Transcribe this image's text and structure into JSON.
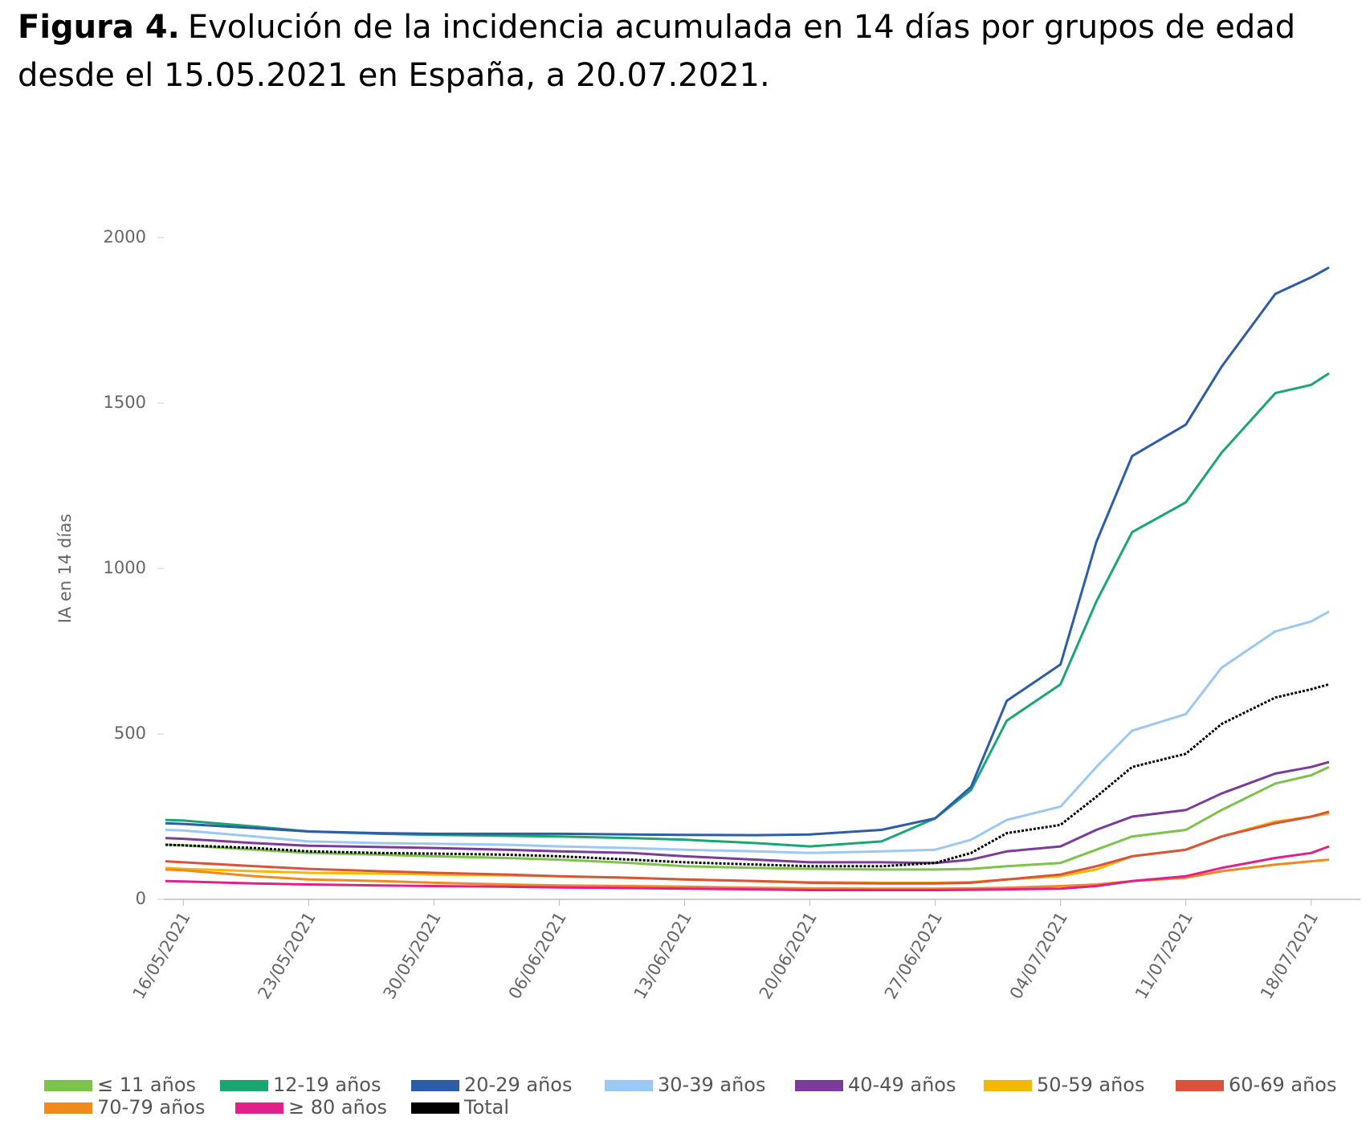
{
  "chart_data": {
    "type": "line",
    "title_label": "Figura 4.",
    "title": "Evolución de la incidencia acumulada en 14 días por grupos de edad",
    "subtitle": "desde el 15.05.2021 en España, a 20.07.2021.",
    "y_label": "IA en 14 días",
    "x": [
      "15/05/2021",
      "16/05/2021",
      "20/05/2021",
      "23/05/2021",
      "27/05/2021",
      "30/05/2021",
      "03/06/2021",
      "06/06/2021",
      "10/06/2021",
      "13/06/2021",
      "17/06/2021",
      "20/06/2021",
      "24/06/2021",
      "27/06/2021",
      "29/06/2021",
      "01/07/2021",
      "04/07/2021",
      "06/07/2021",
      "08/07/2021",
      "11/07/2021",
      "13/07/2021",
      "16/07/2021",
      "18/07/2021",
      "19/07/2021"
    ],
    "xlim": [
      "15/05/2021",
      "19/07/2021"
    ],
    "xticks": [
      "16/05/2021",
      "23/05/2021",
      "30/05/2021",
      "06/06/2021",
      "13/06/2021",
      "20/06/2021",
      "27/06/2021",
      "04/07/2021",
      "11/07/2021",
      "18/07/2021"
    ],
    "ylim": [
      0,
      2000
    ],
    "yticks": [
      0,
      500,
      1000,
      1500,
      2000
    ],
    "series": [
      {
        "name": "≤ 11 años",
        "color": "#7dc24b",
        "values": [
          165,
          163,
          150,
          140,
          135,
          130,
          125,
          120,
          110,
          100,
          95,
          92,
          90,
          90,
          92,
          100,
          110,
          150,
          190,
          210,
          270,
          350,
          375,
          400
        ]
      },
      {
        "name": "12-19 años",
        "color": "#1aa673",
        "values": [
          240,
          238,
          220,
          205,
          198,
          195,
          192,
          190,
          185,
          180,
          170,
          160,
          175,
          245,
          330,
          540,
          650,
          900,
          1110,
          1200,
          1350,
          1530,
          1555,
          1590
        ]
      },
      {
        "name": "20-29 años",
        "color": "#2e5da8",
        "values": [
          230,
          228,
          215,
          205,
          200,
          198,
          198,
          198,
          196,
          195,
          194,
          196,
          210,
          245,
          340,
          600,
          710,
          1080,
          1340,
          1435,
          1610,
          1830,
          1880,
          1910
        ]
      },
      {
        "name": "30-39 años",
        "color": "#9cc8f5",
        "values": [
          210,
          208,
          190,
          175,
          170,
          168,
          165,
          160,
          155,
          150,
          145,
          140,
          145,
          150,
          180,
          240,
          280,
          400,
          510,
          560,
          700,
          810,
          840,
          870
        ]
      },
      {
        "name": "40-49 años",
        "color": "#7b3b9a",
        "values": [
          185,
          183,
          170,
          162,
          158,
          155,
          150,
          145,
          140,
          130,
          120,
          112,
          112,
          110,
          120,
          145,
          160,
          210,
          250,
          270,
          320,
          380,
          400,
          415
        ]
      },
      {
        "name": "50-59 años",
        "color": "#f5b800",
        "values": [
          95,
          92,
          85,
          80,
          78,
          75,
          72,
          70,
          65,
          60,
          55,
          52,
          50,
          50,
          52,
          60,
          70,
          90,
          130,
          150,
          190,
          235,
          250,
          260
        ]
      },
      {
        "name": "60-69 años",
        "color": "#d9543a",
        "values": [
          115,
          112,
          100,
          92,
          85,
          80,
          75,
          70,
          65,
          60,
          55,
          50,
          48,
          48,
          50,
          60,
          75,
          100,
          130,
          150,
          190,
          230,
          250,
          265
        ]
      },
      {
        "name": "70-79 años",
        "color": "#f08a1e",
        "values": [
          90,
          88,
          70,
          60,
          55,
          50,
          45,
          42,
          40,
          38,
          35,
          33,
          32,
          32,
          33,
          35,
          40,
          45,
          55,
          65,
          85,
          105,
          115,
          120
        ]
      },
      {
        "name": "≥ 80 años",
        "color": "#e0218a",
        "values": [
          55,
          54,
          48,
          45,
          42,
          40,
          38,
          36,
          34,
          32,
          30,
          28,
          28,
          28,
          29,
          30,
          32,
          40,
          55,
          70,
          95,
          125,
          140,
          160
        ]
      },
      {
        "name": "Total",
        "color": "#000000",
        "dashed": true,
        "values": [
          165,
          163,
          155,
          145,
          140,
          138,
          135,
          130,
          120,
          112,
          105,
          100,
          100,
          110,
          140,
          200,
          225,
          310,
          400,
          440,
          530,
          610,
          635,
          650
        ]
      }
    ]
  }
}
